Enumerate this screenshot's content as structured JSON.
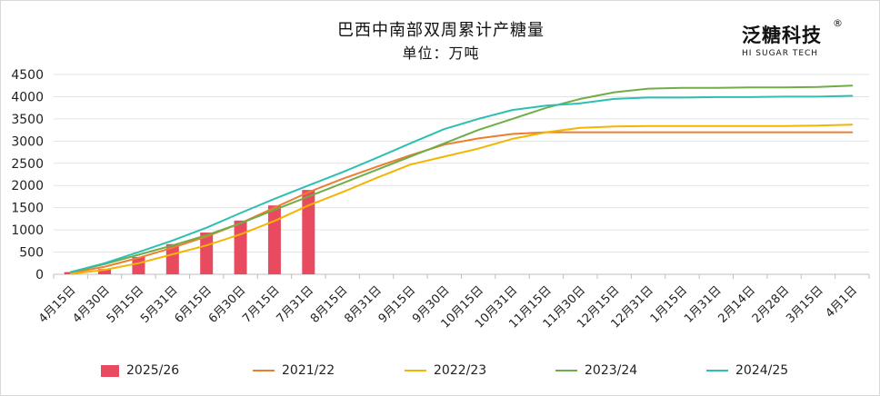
{
  "title": "巴西中南部双周累计产糖量",
  "subtitle": "单位：万吨",
  "logo": {
    "text": "泛糖科技",
    "registered": "®",
    "subtext": "HI SUGAR TECH"
  },
  "chart_data": {
    "type": "bar+line",
    "categories": [
      "4月15日",
      "4月30日",
      "5月15日",
      "5月31日",
      "6月15日",
      "6月30日",
      "7月15日",
      "7月31日",
      "8月15日",
      "8月31日",
      "9月15日",
      "9月30日",
      "10月15日",
      "10月31日",
      "11月15日",
      "11月30日",
      "12月15日",
      "12月31日",
      "1月15日",
      "1月31日",
      "2月14日",
      "2月28日",
      "3月15日",
      "4月1日"
    ],
    "ylim": [
      0,
      4500
    ],
    "yticks": [
      0,
      500,
      1000,
      1500,
      2000,
      2500,
      3000,
      3500,
      4000,
      4500
    ],
    "bar_series": {
      "name": "2025/26",
      "color": "#e84a5f",
      "values": [
        50,
        120,
        390,
        680,
        940,
        1210,
        1550,
        1900
      ]
    },
    "line_series": [
      {
        "name": "2021/22",
        "color": "#ed7d31",
        "values": [
          30,
          170,
          370,
          600,
          850,
          1150,
          1500,
          1850,
          2150,
          2420,
          2680,
          2920,
          3060,
          3160,
          3200,
          3200,
          3200,
          3200,
          3200,
          3200,
          3200,
          3200,
          3200,
          3200
        ]
      },
      {
        "name": "2022/23",
        "color": "#f4b400",
        "values": [
          10,
          100,
          250,
          450,
          650,
          900,
          1200,
          1550,
          1850,
          2170,
          2470,
          2650,
          2830,
          3050,
          3200,
          3300,
          3330,
          3340,
          3340,
          3340,
          3340,
          3340,
          3350,
          3370
        ]
      },
      {
        "name": "2023/24",
        "color": "#70ad47",
        "values": [
          50,
          230,
          440,
          650,
          880,
          1150,
          1450,
          1750,
          2050,
          2350,
          2650,
          2950,
          3250,
          3500,
          3750,
          3950,
          4100,
          4180,
          4200,
          4200,
          4210,
          4210,
          4220,
          4250
        ]
      },
      {
        "name": "2024/25",
        "color": "#2ebfb3",
        "values": [
          50,
          250,
          500,
          760,
          1050,
          1380,
          1700,
          2000,
          2300,
          2620,
          2950,
          3270,
          3500,
          3700,
          3800,
          3850,
          3950,
          3980,
          3980,
          3990,
          3990,
          4000,
          4000,
          4020
        ]
      }
    ],
    "legend_position": "bottom",
    "grid": true
  }
}
